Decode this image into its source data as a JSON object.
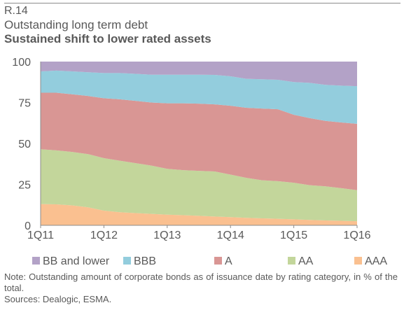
{
  "header": {
    "figure_number": "R.14",
    "subtitle": "Outstanding long term debt",
    "title": "Sustained shift to lower rated assets"
  },
  "chart_data": {
    "type": "area",
    "stacked": true,
    "x": [
      "1Q11",
      "2Q11",
      "3Q11",
      "4Q11",
      "1Q12",
      "2Q12",
      "3Q12",
      "4Q12",
      "1Q13",
      "2Q13",
      "3Q13",
      "4Q13",
      "1Q14",
      "2Q14",
      "3Q14",
      "4Q14",
      "1Q15",
      "2Q15",
      "3Q15",
      "4Q15",
      "1Q16"
    ],
    "x_tick_labels": [
      "1Q11",
      "1Q12",
      "1Q13",
      "1Q14",
      "1Q15",
      "1Q16"
    ],
    "ylim": [
      0,
      100
    ],
    "y_ticks": [
      0,
      25,
      50,
      75,
      100
    ],
    "grid": false,
    "legend_position": "bottom",
    "series": [
      {
        "name": "AAA",
        "color": "#fac090",
        "values": [
          13,
          12.8,
          12.2,
          11,
          9,
          8,
          7.5,
          7,
          6.5,
          6.2,
          5.8,
          5.4,
          5,
          4.6,
          4.3,
          4,
          3.7,
          3.3,
          3,
          2.8,
          2.5
        ]
      },
      {
        "name": "AA",
        "color": "#c3d69b",
        "values": [
          33.5,
          33,
          32.6,
          32.5,
          32,
          31.5,
          30.5,
          29.5,
          28,
          27.5,
          27.5,
          27.5,
          26,
          24.4,
          23.2,
          23,
          22.3,
          21.2,
          20.8,
          19.9,
          19
        ]
      },
      {
        "name": "A",
        "color": "#d99694",
        "values": [
          34.5,
          35.2,
          35.2,
          35.5,
          36.6,
          37.5,
          38,
          38.5,
          40,
          40.8,
          41,
          41,
          42,
          42.8,
          43.8,
          43.9,
          41.5,
          41,
          40,
          40.1,
          40.5
        ]
      },
      {
        "name": "BBB",
        "color": "#93cddd",
        "values": [
          13,
          13.5,
          14,
          14.5,
          15.4,
          16,
          16.5,
          17,
          17.5,
          17.5,
          17.7,
          18,
          18,
          17.7,
          17.9,
          18,
          20,
          21.5,
          22,
          22.5,
          23
        ]
      },
      {
        "name": "BB and lower",
        "color": "#b3a2c7",
        "values": [
          6,
          5.5,
          6,
          6.5,
          7,
          7,
          7.5,
          8,
          8,
          8,
          8,
          8.1,
          9,
          10.5,
          10.8,
          11.1,
          12.5,
          13,
          14.2,
          14.7,
          15
        ]
      }
    ],
    "legend_order": [
      "BB and lower",
      "BBB",
      "A",
      "AA",
      "AAA"
    ]
  },
  "footer": {
    "note": "Note: Outstanding amount of corporate bonds as of issuance date by rating category, in % of the total.",
    "sources": "Sources: Dealogic, ESMA."
  }
}
